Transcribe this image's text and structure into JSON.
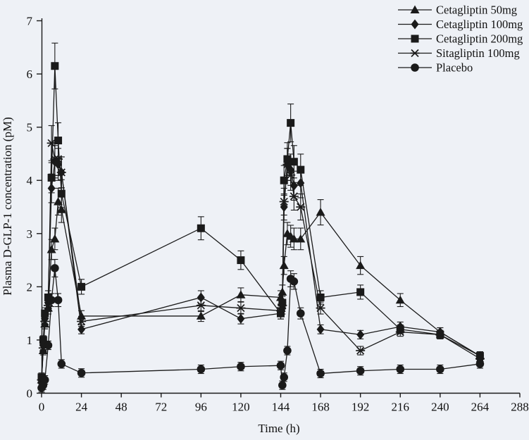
{
  "chart_data": {
    "type": "line",
    "title": "",
    "xlabel": "Time (h)",
    "ylabel": "Plasma D-GLP-1 concentration (pM)",
    "xlim": [
      0,
      288
    ],
    "ylim": [
      0,
      7
    ],
    "x_ticks": [
      0,
      24,
      48,
      72,
      96,
      120,
      144,
      168,
      192,
      216,
      240,
      264,
      288
    ],
    "y_ticks": [
      0,
      1,
      2,
      3,
      4,
      5,
      6,
      7
    ],
    "grid": false,
    "legend_position": "top-right",
    "line_color": "#1a1a1a",
    "background_color": "#eef1f6",
    "x": [
      0,
      1,
      2,
      4,
      6,
      8,
      10,
      12,
      24,
      96,
      120,
      144,
      145,
      146,
      148,
      150,
      152,
      156,
      168,
      192,
      216,
      240,
      264
    ],
    "series": [
      {
        "name": "Cetagliptin 50mg",
        "marker": "triangle",
        "values": [
          0.25,
          0.8,
          1.3,
          1.6,
          2.7,
          2.9,
          3.6,
          3.45,
          1.45,
          1.45,
          1.85,
          1.8,
          1.9,
          2.4,
          3.0,
          2.95,
          2.9,
          2.9,
          3.4,
          2.4,
          1.75,
          1.15,
          0.7
        ]
      },
      {
        "name": "Cetagliptin 100mg",
        "marker": "diamond",
        "values": [
          0.2,
          0.9,
          1.4,
          1.7,
          3.85,
          4.35,
          4.3,
          4.15,
          1.2,
          1.8,
          1.4,
          1.5,
          1.6,
          3.5,
          4.3,
          4.2,
          3.9,
          3.95,
          1.2,
          1.1,
          1.25,
          1.15,
          0.7
        ]
      },
      {
        "name": "Cetagliptin 200mg",
        "marker": "square",
        "values": [
          0.3,
          1.0,
          1.5,
          1.8,
          4.05,
          6.15,
          4.75,
          3.75,
          2.0,
          3.1,
          2.5,
          1.5,
          1.7,
          4.0,
          4.4,
          5.08,
          4.35,
          4.2,
          1.8,
          1.9,
          1.2,
          1.1,
          0.7
        ]
      },
      {
        "name": "Sitagliptin 100mg",
        "marker": "asterisk",
        "values": [
          0.25,
          0.85,
          1.35,
          1.65,
          4.7,
          4.4,
          4.4,
          4.15,
          1.35,
          1.65,
          1.6,
          1.55,
          1.65,
          3.6,
          4.3,
          4.1,
          3.7,
          3.5,
          1.6,
          0.8,
          1.15,
          1.1,
          0.65
        ]
      },
      {
        "name": "Placebo",
        "marker": "circle",
        "values": [
          0.1,
          0.15,
          0.25,
          0.9,
          1.75,
          2.35,
          1.75,
          0.55,
          0.38,
          0.45,
          0.5,
          0.52,
          0.15,
          0.3,
          0.8,
          2.15,
          2.1,
          1.5,
          0.37,
          0.42,
          0.45,
          0.45,
          0.55
        ]
      }
    ],
    "error_bars": {
      "fraction": 0.07,
      "min": 0.08,
      "cap_width": 9
    }
  }
}
